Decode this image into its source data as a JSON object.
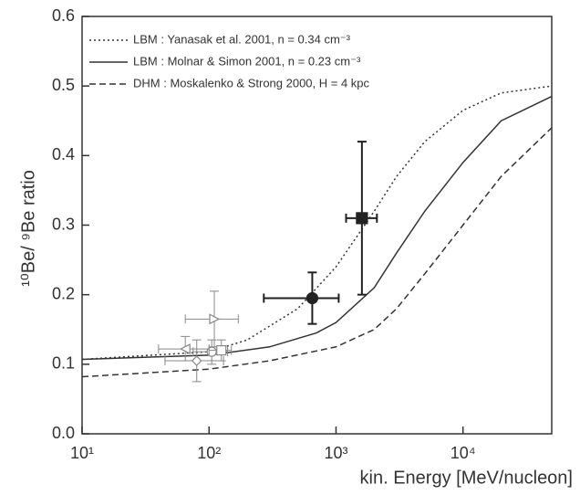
{
  "chart_data": {
    "type": "line",
    "xlabel": "kin. Energy [MeV/nucleon]",
    "ylabel": "¹⁰Be/ ⁹Be ratio",
    "xscale": "log",
    "xlim": [
      10,
      50000
    ],
    "ylim": [
      0,
      0.6
    ],
    "xticks": [
      {
        "value": 10,
        "label": "10¹"
      },
      {
        "value": 100,
        "label": "10²"
      },
      {
        "value": 1000,
        "label": "10³"
      },
      {
        "value": 10000,
        "label": "10⁴"
      }
    ],
    "yticks": [
      {
        "value": 0,
        "label": "0.0"
      },
      0.1,
      0.2,
      0.3,
      0.4,
      0.5,
      0.6
    ],
    "legend": "upper left",
    "series": [
      {
        "name": "LBM : Yanasak et al. 2001, n = 0.34 cm⁻³",
        "color": "#333333",
        "dash": "dotted",
        "x": [
          10,
          100,
          200,
          500,
          1000,
          2000,
          3000,
          5000,
          10000,
          20000,
          50000
        ],
        "values": [
          0.107,
          0.118,
          0.135,
          0.18,
          0.24,
          0.32,
          0.37,
          0.42,
          0.465,
          0.49,
          0.5
        ]
      },
      {
        "name": "LBM : Molnar & Simon 2001, n = 0.23 cm⁻³",
        "color": "#333333",
        "dash": "solid",
        "x": [
          10,
          100,
          300,
          700,
          1000,
          2000,
          3000,
          5000,
          10000,
          20000,
          50000
        ],
        "values": [
          0.107,
          0.113,
          0.125,
          0.145,
          0.16,
          0.21,
          0.26,
          0.32,
          0.39,
          0.45,
          0.485
        ]
      },
      {
        "name": "DHM : Moskalenko & Strong 2000, H = 4 kpc",
        "color": "#333333",
        "dash": "dashed",
        "x": [
          10,
          100,
          300,
          1000,
          2000,
          3000,
          5000,
          10000,
          20000,
          50000
        ],
        "values": [
          0.082,
          0.093,
          0.105,
          0.125,
          0.15,
          0.18,
          0.23,
          0.3,
          0.37,
          0.44
        ]
      }
    ],
    "points": [
      {
        "marker": "square",
        "filled": true,
        "color": "#222222",
        "x": 1600,
        "y": 0.31,
        "xlow": 1200,
        "xhigh": 2100,
        "ylow": 0.2,
        "yhigh": 0.42
      },
      {
        "marker": "circle",
        "filled": true,
        "color": "#222222",
        "x": 650,
        "y": 0.195,
        "xlow": 270,
        "xhigh": 1050,
        "ylow": 0.158,
        "yhigh": 0.232
      },
      {
        "marker": "triangle-right",
        "filled": false,
        "color": "#888888",
        "x": 110,
        "y": 0.165,
        "xlow": 65,
        "xhigh": 170,
        "ylow": 0.125,
        "yhigh": 0.205
      },
      {
        "marker": "triangle-left",
        "filled": false,
        "color": "#888888",
        "x": 65,
        "y": 0.122,
        "xlow": 40,
        "xhigh": 100,
        "ylow": 0.105,
        "yhigh": 0.14
      },
      {
        "marker": "diamond",
        "filled": false,
        "color": "#888888",
        "x": 80,
        "y": 0.105,
        "xlow": 45,
        "xhigh": 130,
        "ylow": 0.075,
        "yhigh": 0.135
      },
      {
        "marker": "circle",
        "filled": false,
        "color": "#888888",
        "x": 105,
        "y": 0.118,
        "xlow": 75,
        "xhigh": 140,
        "ylow": 0.1,
        "yhigh": 0.135
      },
      {
        "marker": "square",
        "filled": false,
        "color": "#888888",
        "x": 125,
        "y": 0.12,
        "xlow": 100,
        "xhigh": 150,
        "ylow": 0.105,
        "yhigh": 0.135
      }
    ]
  }
}
